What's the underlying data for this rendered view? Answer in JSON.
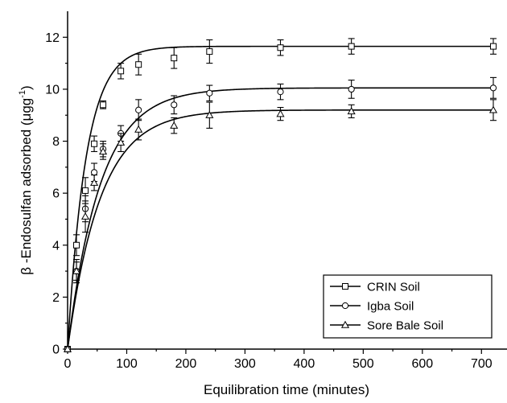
{
  "chart_data": {
    "type": "line",
    "xlabel": "Equilibration time (minutes)",
    "ylabel_prefix": "β -Endosulfan adsorbed (μgg",
    "ylabel_sup": "-1",
    "ylabel_suffix": ")",
    "xlim": [
      0,
      750
    ],
    "ylim": [
      0,
      13
    ],
    "x_ticks": [
      0,
      100,
      200,
      300,
      400,
      500,
      600,
      700
    ],
    "y_ticks": [
      0,
      2,
      4,
      6,
      8,
      10,
      12
    ],
    "legend_position": "bottom-right",
    "series": [
      {
        "name": "CRIN Soil",
        "marker": "square",
        "x": [
          0,
          15,
          30,
          45,
          60,
          90,
          120,
          180,
          240,
          360,
          480,
          720
        ],
        "y": [
          0,
          4.0,
          6.1,
          7.9,
          9.4,
          10.7,
          10.95,
          11.2,
          11.45,
          11.6,
          11.65,
          11.65
        ],
        "err": [
          0,
          0.4,
          0.5,
          0.3,
          0.15,
          0.3,
          0.4,
          0.4,
          0.45,
          0.3,
          0.3,
          0.3
        ],
        "curve": {
          "ymax": 11.65,
          "k": 0.032
        }
      },
      {
        "name": "Igba Soil",
        "marker": "circle",
        "x": [
          0,
          15,
          30,
          45,
          60,
          90,
          120,
          180,
          240,
          360,
          480,
          720
        ],
        "y": [
          0,
          3.0,
          5.4,
          6.8,
          7.7,
          8.3,
          9.2,
          9.4,
          9.85,
          9.9,
          10.0,
          10.05
        ],
        "err": [
          0,
          0.35,
          0.5,
          0.35,
          0.3,
          0.3,
          0.4,
          0.35,
          0.3,
          0.3,
          0.35,
          0.4
        ],
        "curve": {
          "ymax": 10.05,
          "k": 0.018
        }
      },
      {
        "name": "Sore Bale Soil",
        "marker": "triangle",
        "x": [
          0,
          15,
          30,
          45,
          60,
          90,
          120,
          180,
          240,
          360,
          480,
          720
        ],
        "y": [
          0,
          3.0,
          5.1,
          6.4,
          7.6,
          7.95,
          8.45,
          8.6,
          9.0,
          9.05,
          9.15,
          9.2
        ],
        "err": [
          0,
          0.45,
          0.6,
          0.3,
          0.3,
          0.35,
          0.4,
          0.3,
          0.5,
          0.25,
          0.25,
          0.4
        ],
        "curve": {
          "ymax": 9.2,
          "k": 0.018
        }
      }
    ]
  }
}
